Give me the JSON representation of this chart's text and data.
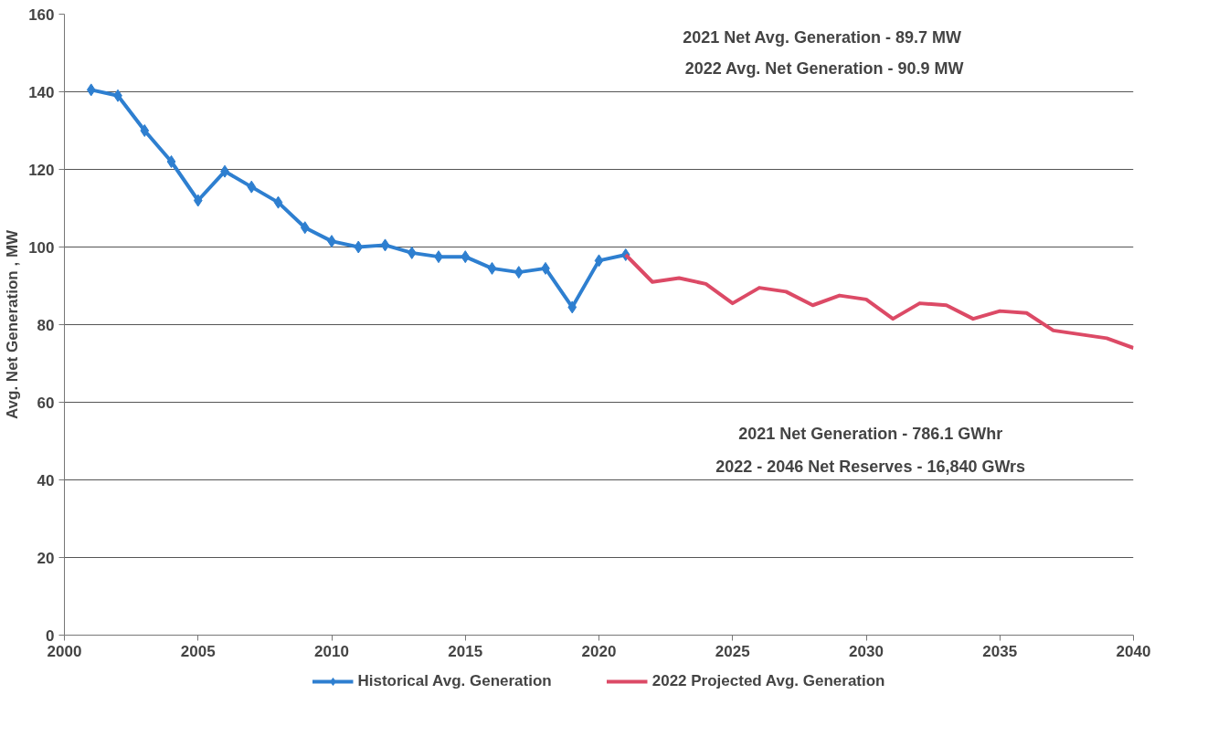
{
  "chart_data": {
    "type": "line",
    "ylabel": "Avg. Net Generation , MW",
    "x": [
      2001,
      2002,
      2003,
      2004,
      2005,
      2006,
      2007,
      2008,
      2009,
      2010,
      2011,
      2012,
      2013,
      2014,
      2015,
      2016,
      2017,
      2018,
      2019,
      2020,
      2021
    ],
    "series": [
      {
        "name": "Historical Avg. Generation",
        "color": "#2e7fd0",
        "marker": "diamond",
        "values": [
          140.5,
          139,
          130,
          122,
          112,
          119.5,
          115.5,
          111.5,
          105,
          101.5,
          100,
          100.5,
          98.5,
          97.5,
          97.5,
          94.5,
          93.5,
          94.5,
          84.5,
          96.5,
          98
        ]
      },
      {
        "name": "2022 Projected Avg. Generation",
        "color": "#dc4a66",
        "marker": "none",
        "x": [
          2021,
          2022,
          2023,
          2024,
          2025,
          2026,
          2027,
          2028,
          2029,
          2030,
          2031,
          2032,
          2033,
          2034,
          2035,
          2036,
          2037,
          2038,
          2039,
          2040
        ],
        "values": [
          98,
          91,
          92,
          90.5,
          85.5,
          89.5,
          88.5,
          85,
          87.5,
          86.5,
          81.5,
          85.5,
          85,
          81.5,
          83.5,
          83,
          78.5,
          77.5,
          76.5,
          74
        ]
      }
    ],
    "xlim": [
      2000,
      2040
    ],
    "xticks": [
      2000,
      2005,
      2010,
      2015,
      2020,
      2025,
      2030,
      2035,
      2040
    ],
    "ylim": [
      0,
      160
    ],
    "yticks": [
      0,
      20,
      40,
      60,
      80,
      100,
      120,
      140,
      160
    ],
    "grid": "y",
    "legend": "bottom",
    "line_style": "solid",
    "annotations": [
      "2021 Net  Avg. Generation - 89.7 MW",
      "2022 Avg. Net Generation - 90.9 MW",
      "2021 Net Generation - 786.1 GWhr",
      "2022 - 2046 Net Reserves - 16,840 GWrs"
    ]
  }
}
